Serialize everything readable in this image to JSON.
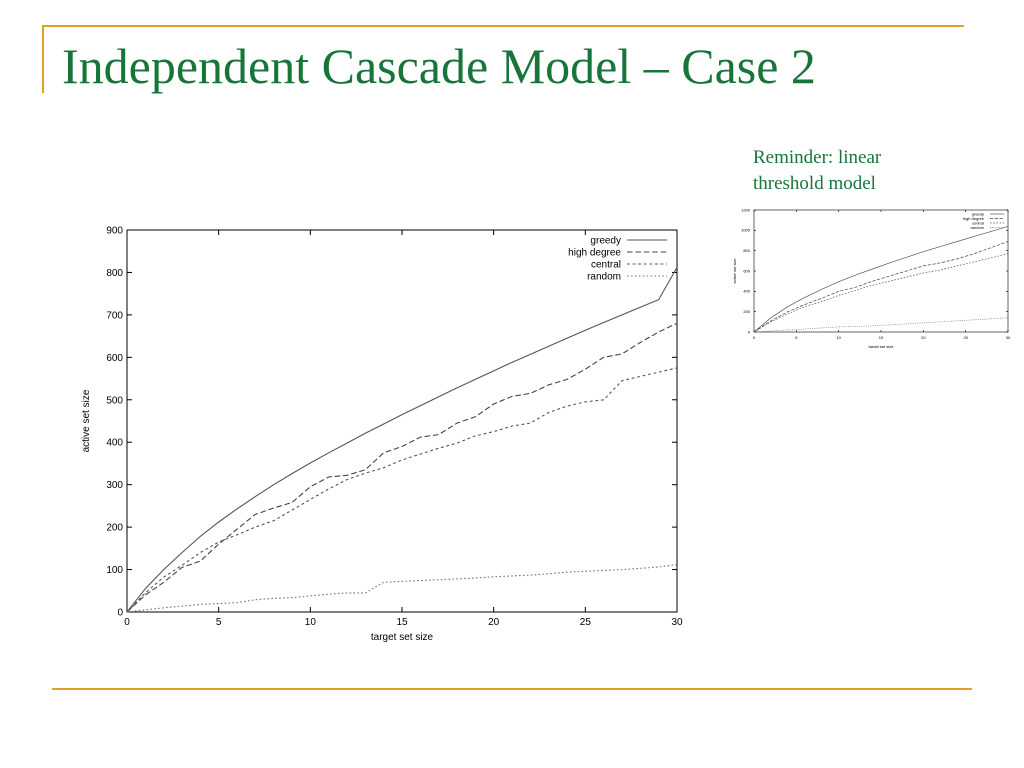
{
  "slide": {
    "title": "Independent Cascade Model – Case 2",
    "reminder_lines": [
      "Reminder: linear",
      "threshold model"
    ],
    "colors": {
      "title": "#17753a",
      "accent_rule": "#e0a020"
    }
  },
  "chart_data": [
    {
      "type": "line",
      "title": "",
      "xlabel": "target set size",
      "ylabel": "active set size",
      "xlim": [
        0,
        30
      ],
      "ylim": [
        0,
        900
      ],
      "xticks": [
        0,
        5,
        10,
        15,
        20,
        25,
        30
      ],
      "yticks": [
        0,
        100,
        200,
        300,
        400,
        500,
        600,
        700,
        800,
        900
      ],
      "legend_position": "top-right",
      "grid": false,
      "series": [
        {
          "name": "greedy",
          "style": "solid",
          "x": [
            0,
            1,
            2,
            3,
            4,
            5,
            6,
            7,
            8,
            9,
            10,
            11,
            12,
            13,
            14,
            15,
            16,
            17,
            18,
            19,
            20,
            21,
            22,
            23,
            24,
            25,
            26,
            27,
            28,
            29,
            30
          ],
          "y": [
            0,
            55,
            100,
            140,
            178,
            212,
            243,
            272,
            300,
            326,
            351,
            375,
            398,
            421,
            443,
            465,
            486,
            507,
            528,
            548,
            568,
            588,
            607,
            626,
            645,
            664,
            682,
            700,
            718,
            736,
            812
          ]
        },
        {
          "name": "high degree",
          "style": "dashed",
          "x": [
            0,
            1,
            2,
            3,
            4,
            5,
            6,
            7,
            8,
            9,
            10,
            11,
            12,
            13,
            14,
            15,
            16,
            17,
            18,
            19,
            20,
            21,
            22,
            23,
            24,
            25,
            26,
            27,
            28,
            29,
            30
          ],
          "y": [
            0,
            40,
            70,
            105,
            120,
            160,
            195,
            230,
            245,
            258,
            295,
            318,
            322,
            335,
            375,
            390,
            412,
            418,
            445,
            460,
            490,
            508,
            515,
            535,
            548,
            572,
            600,
            608,
            635,
            660,
            680
          ]
        },
        {
          "name": "central",
          "style": "dotted",
          "x": [
            0,
            1,
            2,
            3,
            4,
            5,
            6,
            7,
            8,
            9,
            10,
            11,
            12,
            13,
            14,
            15,
            16,
            17,
            18,
            19,
            20,
            21,
            22,
            23,
            24,
            25,
            26,
            27,
            28,
            29,
            30
          ],
          "y": [
            0,
            45,
            82,
            110,
            140,
            165,
            182,
            200,
            215,
            240,
            265,
            290,
            312,
            327,
            340,
            358,
            372,
            386,
            398,
            415,
            425,
            438,
            445,
            470,
            485,
            495,
            500,
            545,
            555,
            565,
            575
          ]
        },
        {
          "name": "random",
          "style": "dotted-fine",
          "x": [
            0,
            1,
            2,
            3,
            4,
            5,
            6,
            7,
            8,
            9,
            10,
            11,
            12,
            13,
            14,
            15,
            16,
            17,
            18,
            19,
            20,
            21,
            22,
            23,
            24,
            25,
            26,
            27,
            28,
            29,
            30
          ],
          "y": [
            0,
            5,
            10,
            14,
            18,
            20,
            22,
            29,
            32,
            34,
            38,
            42,
            45,
            45,
            70,
            72,
            74,
            76,
            78,
            80,
            83,
            85,
            87,
            90,
            94,
            96,
            98,
            100,
            103,
            106,
            112
          ]
        }
      ]
    },
    {
      "type": "line",
      "title": "",
      "xlabel": "target set size",
      "ylabel": "active set size",
      "xlim": [
        0,
        30
      ],
      "ylim": [
        0,
        1200
      ],
      "xticks": [
        0,
        5,
        10,
        15,
        20,
        25,
        30
      ],
      "yticks": [
        0,
        200,
        400,
        600,
        800,
        1000,
        1200
      ],
      "legend_position": "top-right",
      "grid": false,
      "series": [
        {
          "name": "greedy",
          "style": "solid",
          "x": [
            0,
            2,
            4,
            6,
            8,
            10,
            12,
            14,
            16,
            18,
            20,
            22,
            24,
            26,
            28,
            30
          ],
          "y": [
            0,
            140,
            250,
            340,
            420,
            495,
            560,
            620,
            680,
            735,
            790,
            840,
            890,
            940,
            990,
            1040
          ]
        },
        {
          "name": "high degree",
          "style": "dashed",
          "x": [
            0,
            2,
            4,
            6,
            8,
            10,
            12,
            14,
            16,
            18,
            20,
            22,
            24,
            26,
            28,
            30
          ],
          "y": [
            0,
            110,
            200,
            270,
            330,
            400,
            440,
            500,
            550,
            600,
            650,
            680,
            720,
            770,
            830,
            890
          ]
        },
        {
          "name": "central",
          "style": "dotted",
          "x": [
            0,
            2,
            4,
            6,
            8,
            10,
            12,
            14,
            16,
            18,
            20,
            22,
            24,
            26,
            28,
            30
          ],
          "y": [
            0,
            100,
            180,
            250,
            300,
            360,
            410,
            460,
            500,
            540,
            580,
            610,
            650,
            690,
            730,
            770
          ]
        },
        {
          "name": "random",
          "style": "dotted-fine",
          "x": [
            0,
            2,
            4,
            6,
            8,
            10,
            12,
            14,
            16,
            18,
            20,
            22,
            24,
            26,
            28,
            30
          ],
          "y": [
            0,
            10,
            20,
            30,
            40,
            50,
            55,
            60,
            70,
            80,
            90,
            100,
            110,
            120,
            130,
            140
          ]
        }
      ]
    }
  ]
}
